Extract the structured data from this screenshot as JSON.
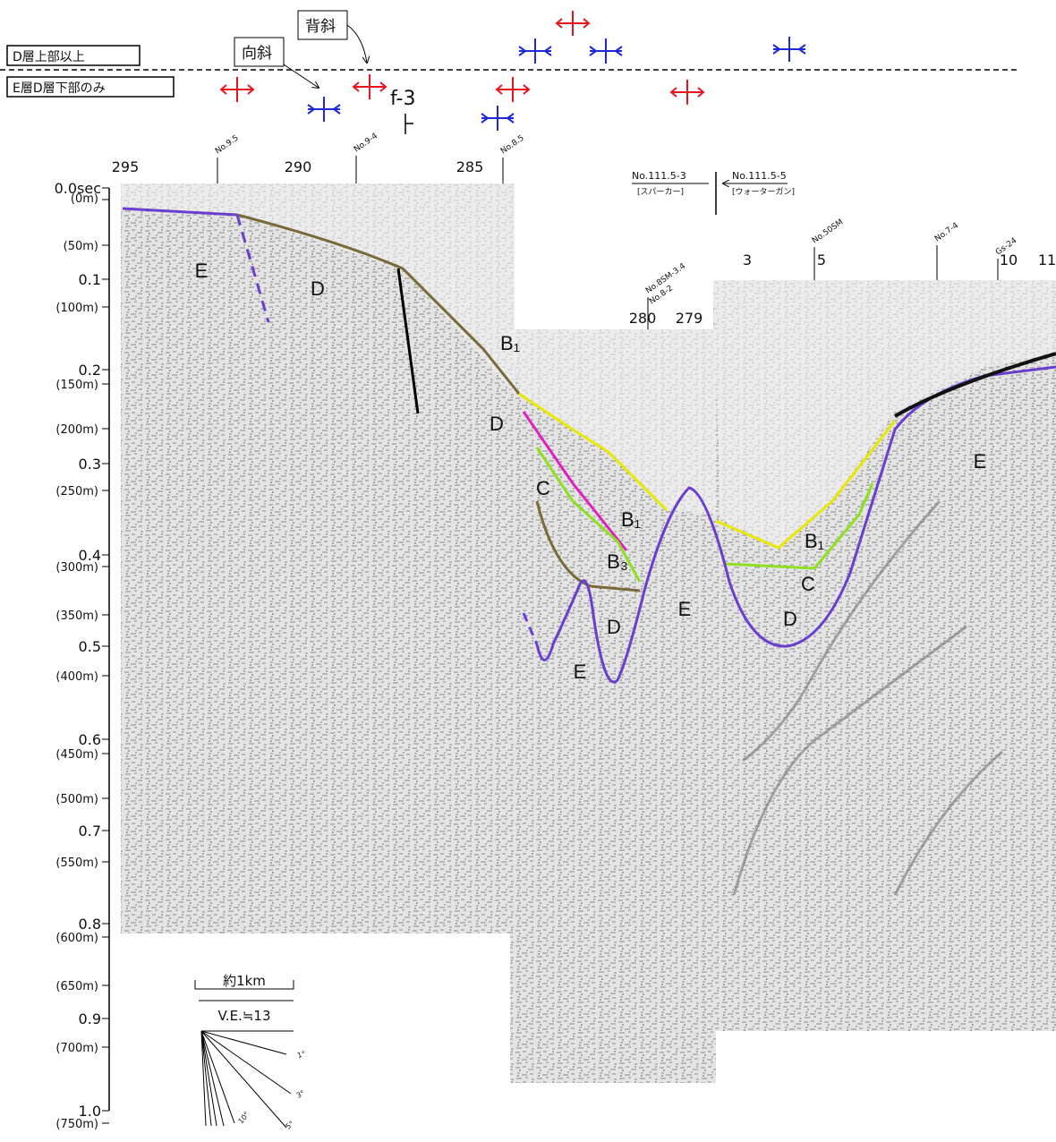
{
  "legend": {
    "upper": "D層上部以上",
    "lower": "E層D層下部のみ"
  },
  "callouts": {
    "syncline": "向斜",
    "anticline": "背斜"
  },
  "fault": "f-3",
  "shotpoints": [
    "295",
    "290",
    "285",
    "280",
    "279",
    "3",
    "5",
    "10",
    "11"
  ],
  "survey_points": [
    "No.9.5",
    "No.9-4",
    "No.8.5",
    "No.8SM-3.4",
    "No.8-2",
    "No.50SM",
    "No.7-4",
    "Gs-24"
  ],
  "sources": {
    "left": "No.111.5-3",
    "left_type": "[スパーカー]",
    "right": "No.111.5-5",
    "right_type": "[ウォーターガン]"
  },
  "time_axis": {
    "times": [
      "0.0sec",
      "0.1",
      "0.2",
      "0.3",
      "0.4",
      "0.5",
      "0.6",
      "0.7",
      "0.8",
      "0.9",
      "1.0"
    ],
    "depths": [
      "(0m)",
      "(50m)",
      "(100m)",
      "(150m)",
      "(200m)",
      "(250m)",
      "(300m)",
      "(350m)",
      "(400m)",
      "(450m)",
      "(500m)",
      "(550m)",
      "(600m)",
      "(650m)",
      "(700m)",
      "(750m)"
    ]
  },
  "layers": [
    "E",
    "D",
    "B₁",
    "D",
    "C",
    "B₁",
    "B₃",
    "D",
    "E",
    "E",
    "B₁",
    "C",
    "D",
    "E"
  ],
  "scale": {
    "length": "約1km",
    "exaggeration": "V.E.≒13",
    "angles": [
      "1°",
      "3°",
      "5°",
      "10°"
    ]
  }
}
